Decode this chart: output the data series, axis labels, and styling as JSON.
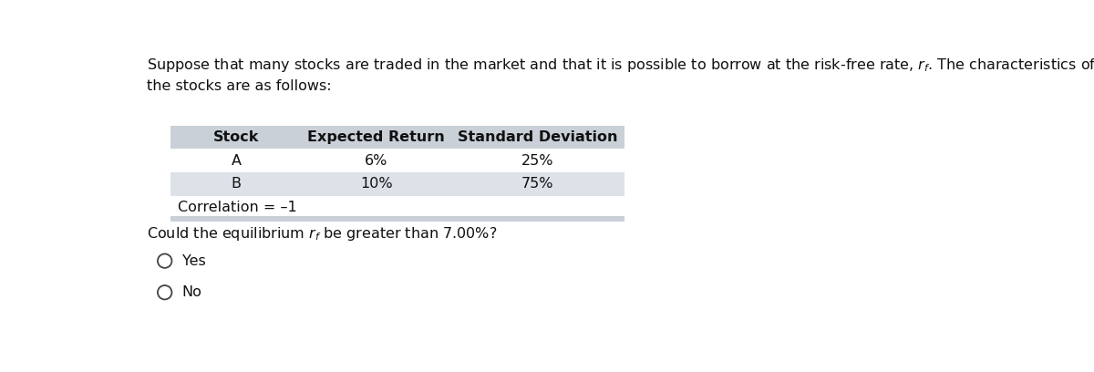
{
  "intro_line1": "Suppose that many stocks are traded in the market and that it is possible to borrow at the risk-free rate, ",
  "intro_line1_end": ". The characteristics of two of",
  "intro_line2": "the stocks are as follows:",
  "table_headers": [
    "Stock",
    "Expected Return",
    "Standard Deviation"
  ],
  "table_rows": [
    [
      "A",
      "6%",
      "25%"
    ],
    [
      "B",
      "10%",
      "75%"
    ]
  ],
  "correlation_text": "Correlation = –1",
  "question_pre": "Could the equilibrium ",
  "question_post": " be greater than 7.00%?",
  "options": [
    "Yes",
    "No"
  ],
  "header_bg": "#c9d0d8",
  "row_a_bg": "#ffffff",
  "row_b_bg": "#dce2e8",
  "corr_bg": "#ffffff",
  "footer_bar_bg": "#c9d0d8",
  "bg_color": "#ffffff",
  "text_color": "#111111",
  "font_size": 11.5
}
